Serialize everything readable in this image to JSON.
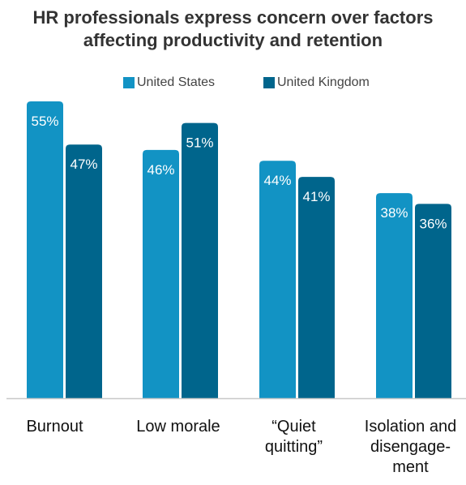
{
  "chart_data": {
    "type": "bar",
    "title_lines": [
      "HR professionals express concern over factors",
      "affecting productivity and retention"
    ],
    "categories": [
      "Burnout",
      "Low morale",
      "“Quiet\nquitting”",
      "Isolation and\ndisengage-\nment"
    ],
    "series": [
      {
        "name": "United States",
        "values": [
          55,
          46,
          44,
          38
        ],
        "labels": [
          "55%",
          "46%",
          "44%",
          "38%"
        ],
        "color": "#1293c4"
      },
      {
        "name": "United Kingdom",
        "values": [
          47,
          51,
          41,
          36
        ],
        "labels": [
          "47%",
          "51%",
          "41%",
          "36%"
        ],
        "color": "#00658c"
      }
    ],
    "ylim": [
      0,
      55
    ],
    "grid": false,
    "legend_placement": "top"
  }
}
